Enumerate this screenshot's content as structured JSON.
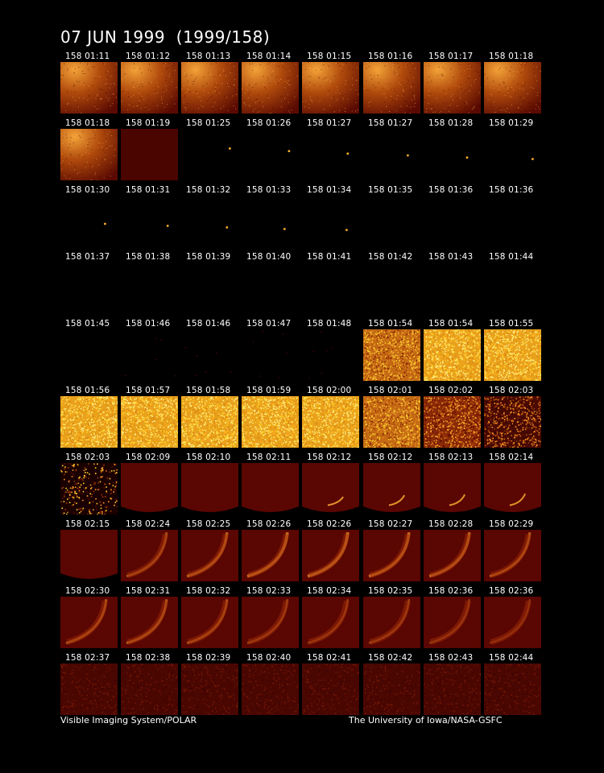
{
  "header": {
    "title": "07 JUN 1999  (1999/158)"
  },
  "footer": {
    "left_text": "Visible Imaging System/POLAR",
    "right_text": "The University of Iowa/NASA-GSFC"
  },
  "frames": [
    {
      "label": "158 01:11",
      "style": "glow"
    },
    {
      "label": "158 01:12",
      "style": "glow"
    },
    {
      "label": "158 01:13",
      "style": "glow"
    },
    {
      "label": "158 01:14",
      "style": "glow"
    },
    {
      "label": "158 01:15",
      "style": "glow"
    },
    {
      "label": "158 01:16",
      "style": "glow"
    },
    {
      "label": "158 01:17",
      "style": "glow"
    },
    {
      "label": "158 01:18",
      "style": "glow"
    },
    {
      "label": "158 01:18",
      "style": "glow"
    },
    {
      "label": "158 01:19",
      "style": "dark"
    },
    {
      "label": "158 01:25",
      "style": "dot",
      "dot": [
        0.85,
        0.45
      ]
    },
    {
      "label": "158 01:26",
      "style": "dot",
      "dot": [
        0.83,
        0.55
      ]
    },
    {
      "label": "158 01:27",
      "style": "dot",
      "dot": [
        0.8,
        0.65
      ]
    },
    {
      "label": "158 01:27",
      "style": "dot",
      "dot": [
        0.78,
        0.72
      ]
    },
    {
      "label": "158 01:28",
      "style": "dot",
      "dot": [
        0.76,
        0.8
      ]
    },
    {
      "label": "158 01:29",
      "style": "dot",
      "dot": [
        0.85,
        0.86
      ]
    },
    {
      "label": "158 01:30",
      "style": "dot",
      "dot": [
        0.78,
        0.78
      ]
    },
    {
      "label": "158 01:31",
      "style": "dot",
      "dot": [
        0.82,
        0.86
      ]
    },
    {
      "label": "158 01:32",
      "style": "dot",
      "dot": [
        0.8,
        0.92
      ]
    },
    {
      "label": "158 01:33",
      "style": "dot",
      "dot": [
        0.75,
        0.98
      ]
    },
    {
      "label": "158 01:34",
      "style": "dot",
      "dot": [
        0.78,
        1.02
      ]
    },
    {
      "label": "158 01:35",
      "style": "none"
    },
    {
      "label": "158 01:36",
      "style": "none"
    },
    {
      "label": "158 01:36",
      "style": "none"
    },
    {
      "label": "158 01:37",
      "style": "none"
    },
    {
      "label": "158 01:38",
      "style": "none"
    },
    {
      "label": "158 01:39",
      "style": "none"
    },
    {
      "label": "158 01:40",
      "style": "none"
    },
    {
      "label": "158 01:41",
      "style": "none"
    },
    {
      "label": "158 01:42",
      "style": "none"
    },
    {
      "label": "158 01:43",
      "style": "none"
    },
    {
      "label": "158 01:44",
      "style": "none"
    },
    {
      "label": "158 01:45",
      "style": "none"
    },
    {
      "label": "158 01:46",
      "style": "speck"
    },
    {
      "label": "158 01:46",
      "style": "speck"
    },
    {
      "label": "158 01:47",
      "style": "speck"
    },
    {
      "label": "158 01:48",
      "style": "speck"
    },
    {
      "label": "158 01:54",
      "style": "noise-orange"
    },
    {
      "label": "158 01:54",
      "style": "noise-yellow"
    },
    {
      "label": "158 01:55",
      "style": "noise-yellow"
    },
    {
      "label": "158 01:56",
      "style": "noise-yellow"
    },
    {
      "label": "158 01:57",
      "style": "noise-yellow"
    },
    {
      "label": "158 01:58",
      "style": "noise-yellow"
    },
    {
      "label": "158 01:59",
      "style": "noise-yellow"
    },
    {
      "label": "158 02:00",
      "style": "noise-yellow"
    },
    {
      "label": "158 02:01",
      "style": "noise-orange"
    },
    {
      "label": "158 02:02",
      "style": "noise-red"
    },
    {
      "label": "158 02:03",
      "style": "noise-dark"
    },
    {
      "label": "158 02:03",
      "style": "noise-sparse"
    },
    {
      "label": "158 02:09",
      "style": "disc"
    },
    {
      "label": "158 02:10",
      "style": "disc"
    },
    {
      "label": "158 02:11",
      "style": "disc"
    },
    {
      "label": "158 02:12",
      "style": "disc-arc",
      "arc": 0.15
    },
    {
      "label": "158 02:12",
      "style": "disc-arc",
      "arc": 0.25
    },
    {
      "label": "158 02:13",
      "style": "disc-arc",
      "arc": 0.3
    },
    {
      "label": "158 02:14",
      "style": "disc-arc",
      "arc": 0.35
    },
    {
      "label": "158 02:15",
      "style": "disc"
    },
    {
      "label": "158 02:24",
      "style": "arc",
      "arc": 0.5
    },
    {
      "label": "158 02:25",
      "style": "arc",
      "arc": 0.7
    },
    {
      "label": "158 02:26",
      "style": "arc",
      "arc": 0.85
    },
    {
      "label": "158 02:26",
      "style": "arc",
      "arc": 0.9
    },
    {
      "label": "158 02:27",
      "style": "arc",
      "arc": 0.8
    },
    {
      "label": "158 02:28",
      "style": "arc",
      "arc": 0.75
    },
    {
      "label": "158 02:29",
      "style": "arc",
      "arc": 0.6
    },
    {
      "label": "158 02:30",
      "style": "arc",
      "arc": 0.55
    },
    {
      "label": "158 02:31",
      "style": "arc",
      "arc": 0.6
    },
    {
      "label": "158 02:32",
      "style": "arc",
      "arc": 0.5
    },
    {
      "label": "158 02:33",
      "style": "arc",
      "arc": 0.3
    },
    {
      "label": "158 02:34",
      "style": "arc",
      "arc": 0.25
    },
    {
      "label": "158 02:35",
      "style": "arc",
      "arc": 0.3
    },
    {
      "label": "158 02:36",
      "style": "arc",
      "arc": 0.2
    },
    {
      "label": "158 02:36",
      "style": "arc",
      "arc": 0.1
    },
    {
      "label": "158 02:37",
      "style": "faint"
    },
    {
      "label": "158 02:38",
      "style": "faint"
    },
    {
      "label": "158 02:39",
      "style": "faint"
    },
    {
      "label": "158 02:40",
      "style": "faint"
    },
    {
      "label": "158 02:41",
      "style": "faint"
    },
    {
      "label": "158 02:42",
      "style": "faint"
    },
    {
      "label": "158 02:43",
      "style": "faint"
    },
    {
      "label": "158 02:44",
      "style": "faint"
    }
  ],
  "colors": {
    "background": "#000000",
    "dark_red": "#4a0500",
    "orange": "#e08a1e",
    "yellow": "#ffd42a",
    "text": "#ffffff"
  }
}
